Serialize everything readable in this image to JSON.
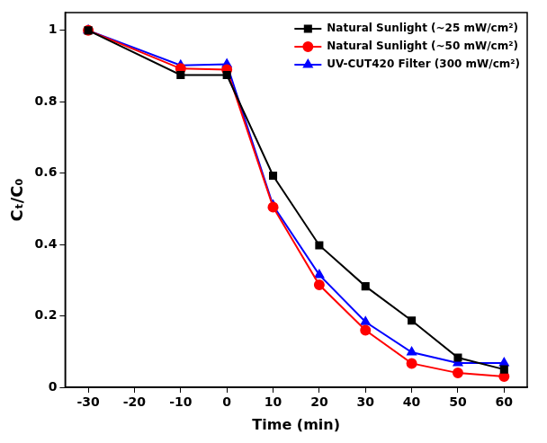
{
  "chart_data": {
    "type": "line",
    "x_label": "Time (min)",
    "y_label": "Cₜ/C₀",
    "x": [
      -30,
      -10,
      0,
      10,
      20,
      30,
      40,
      50,
      60
    ],
    "series": [
      {
        "name": "Natural Sunlight (~25 mW/cm²)",
        "color": "#000000",
        "marker": "square",
        "values": [
          1,
          0.875,
          0.875,
          0.593,
          0.398,
          0.283,
          0.187,
          0.083,
          0.05
        ]
      },
      {
        "name": "Natural Sunlight (~50 mW/cm²)",
        "color": "#ff0000",
        "marker": "circle",
        "values": [
          1,
          0.893,
          0.89,
          0.505,
          0.287,
          0.16,
          0.067,
          0.04,
          0.03
        ]
      },
      {
        "name": "UV-CUT420 Filter (300 mW/cm²)",
        "color": "#0000ff",
        "marker": "triangle",
        "values": [
          1,
          0.902,
          0.905,
          0.51,
          0.315,
          0.183,
          0.098,
          0.068,
          0.068
        ]
      }
    ],
    "xlim": [
      -35,
      65
    ],
    "xticks": [
      -30,
      -20,
      -10,
      0,
      10,
      20,
      30,
      40,
      50,
      60
    ],
    "ylim": [
      0,
      1.05
    ],
    "yticks": [
      0,
      0.2,
      0.4,
      0.6,
      0.8,
      1
    ],
    "grid": false,
    "legend": "upper right"
  }
}
